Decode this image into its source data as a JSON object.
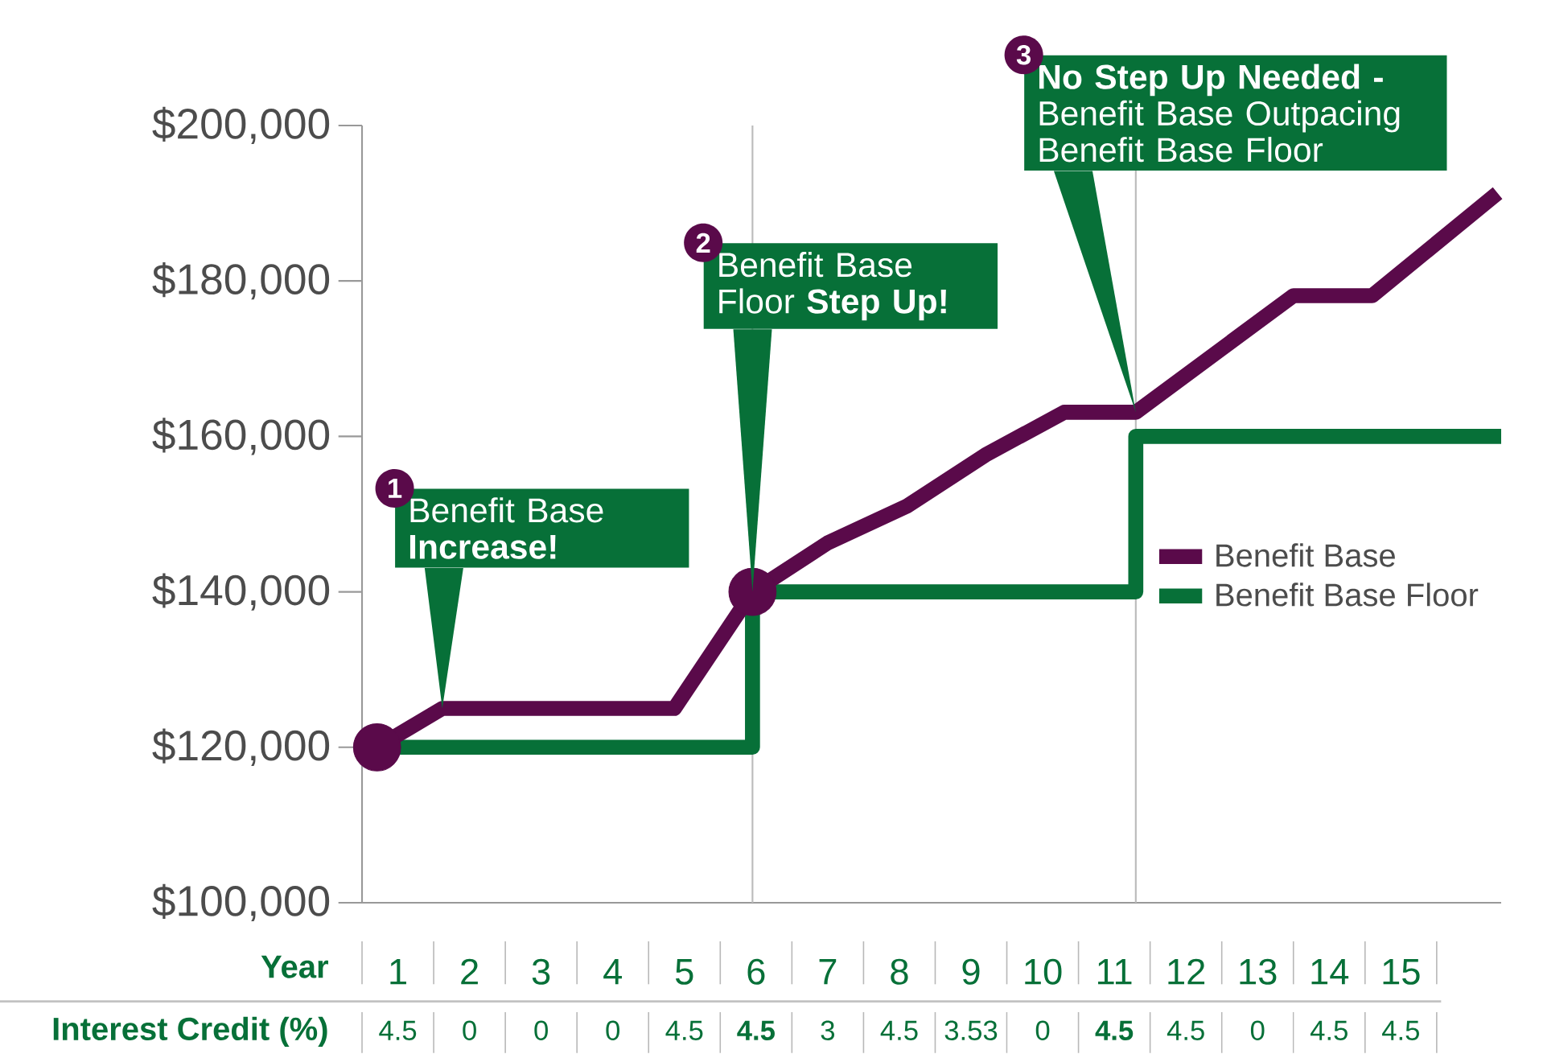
{
  "chart_data": {
    "type": "line",
    "xlabel": "Year",
    "xlim": [
      0.5,
      16.4
    ],
    "xticks": [
      1,
      2,
      3,
      4,
      5,
      6,
      7,
      8,
      9,
      10,
      11,
      12,
      13,
      14,
      15
    ],
    "ylim": [
      100000,
      200000
    ],
    "yticks": [
      {
        "value": 100000,
        "label": "$100,000"
      },
      {
        "value": 120000,
        "label": "$120,000"
      },
      {
        "value": 140000,
        "label": "$140,000"
      },
      {
        "value": 160000,
        "label": "$160,000"
      },
      {
        "value": 180000,
        "label": "$180,000"
      },
      {
        "value": 200000,
        "label": "$200,000"
      }
    ],
    "series": [
      {
        "name": "Benefit Base",
        "color": "#5a0a4a",
        "x": [
          0.71,
          1.62,
          4.86,
          5.95,
          7.0,
          8.1,
          9.2,
          10.3,
          11.3,
          13.5,
          14.6,
          16.35
        ],
        "values": [
          120000,
          125000,
          125000,
          140000,
          146300,
          151000,
          157600,
          163100,
          163100,
          178100,
          178100,
          191300
        ]
      },
      {
        "name": "Benefit Base Floor",
        "color": "#077038",
        "x": [
          0.71,
          5.95,
          5.95,
          11.3,
          11.3,
          16.4
        ],
        "values": [
          120000,
          120000,
          140000,
          140000,
          160000,
          160000
        ]
      },
      {
        "type": "scatter",
        "color": "#5a0a4a",
        "x": [
          0.71,
          5.95
        ],
        "values": [
          120000,
          140000
        ]
      }
    ],
    "ref_lines": [
      {
        "axis": "x",
        "value": 5.95,
        "color": "#bbbbbb"
      },
      {
        "axis": "x",
        "value": 11.3,
        "color": "#bbbbbb"
      }
    ],
    "annotations": [
      "Interest Credit (%)",
      "1",
      {
        "text": "Benefit Base **Increase!**",
        "x": 1.62,
        "y": 125000
      },
      "2",
      {
        "text": "Benefit Base Floor **Step Up!**",
        "x": 5.95,
        "y": 140000
      },
      "3",
      {
        "text": "**No Step Up Needed -** Benefit Base Outpacing Benefit Base Floor",
        "x": 11.3,
        "y": 163100
      },
      "4.5",
      "0",
      "0",
      "0",
      "4.5",
      "**4.5**",
      "3",
      "4.5",
      "3.53",
      "0",
      "**4.5**",
      "4.5",
      "0",
      "4.5",
      "4.5"
    ],
    "legend": "right",
    "grid": false
  }
}
